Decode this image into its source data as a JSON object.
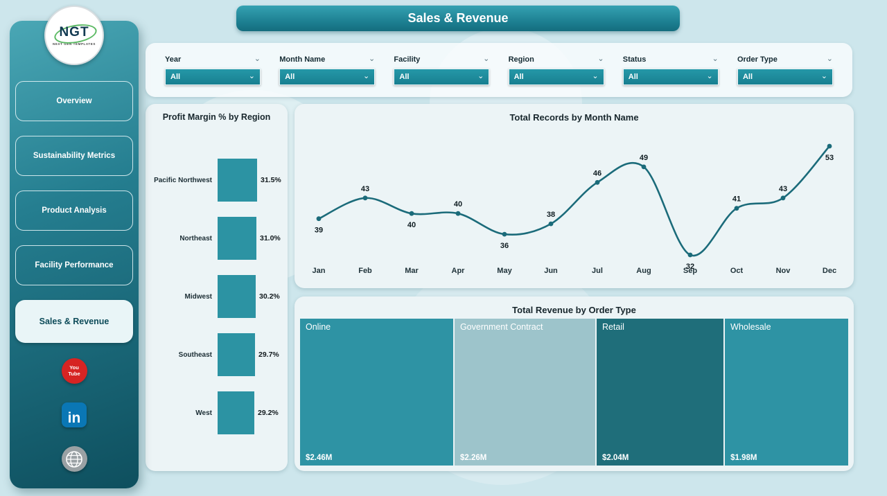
{
  "header": {
    "title": "Sales & Revenue"
  },
  "sidebar": {
    "logo": {
      "text": "NGT",
      "subtext": "NEXT GEN TEMPLATES"
    },
    "items": [
      {
        "label": "Overview",
        "active": false
      },
      {
        "label": "Sustainability Metrics",
        "active": false
      },
      {
        "label": "Product Analysis",
        "active": false
      },
      {
        "label": "Facility Performance",
        "active": false
      },
      {
        "label": "Sales & Revenue",
        "active": true
      }
    ],
    "social": [
      {
        "name": "youtube",
        "lines": [
          "You",
          "Tube"
        ]
      },
      {
        "name": "linkedin",
        "glyph": "in"
      },
      {
        "name": "website"
      }
    ]
  },
  "filters": {
    "slicers": [
      {
        "label": "Year",
        "value": "All"
      },
      {
        "label": "Month Name",
        "value": "All"
      },
      {
        "label": "Facility",
        "value": "All"
      },
      {
        "label": "Region",
        "value": "All"
      },
      {
        "label": "Status",
        "value": "All"
      },
      {
        "label": "Order Type",
        "value": "All"
      }
    ]
  },
  "chart_data": [
    {
      "type": "bar",
      "orientation": "horizontal",
      "title": "Profit Margin % by Region",
      "categories": [
        "Pacific Northwest",
        "Northeast",
        "Midwest",
        "Southeast",
        "West"
      ],
      "values": [
        31.5,
        31.0,
        30.2,
        29.7,
        29.2
      ],
      "value_labels": [
        "31.5%",
        "31.0%",
        "30.2%",
        "29.7%",
        "29.2%"
      ],
      "color": "#2c93a3"
    },
    {
      "type": "line",
      "title": "Total Records by Month Name",
      "categories": [
        "Jan",
        "Feb",
        "Mar",
        "Apr",
        "May",
        "Jun",
        "Jul",
        "Aug",
        "Sep",
        "Oct",
        "Nov",
        "Dec"
      ],
      "values": [
        39,
        43,
        40,
        40,
        36,
        38,
        46,
        49,
        32,
        41,
        43,
        53
      ],
      "label_positions": [
        "below",
        "above",
        "below",
        "above",
        "below",
        "above",
        "above",
        "above",
        "below",
        "above",
        "above",
        "below"
      ],
      "color": "#1b6b7a",
      "grid": false,
      "legend": false
    },
    {
      "type": "treemap",
      "title": "Total Revenue by Order Type",
      "categories": [
        "Online",
        "Government Contract",
        "Retail",
        "Wholesale"
      ],
      "values": [
        2.46,
        2.26,
        2.04,
        1.98
      ],
      "value_labels": [
        "$2.46M",
        "$2.26M",
        "$2.04M",
        "$1.98M"
      ],
      "colors": [
        "#2e93a4",
        "#9dc4cb",
        "#1f6e7a",
        "#2e93a4"
      ]
    }
  ]
}
